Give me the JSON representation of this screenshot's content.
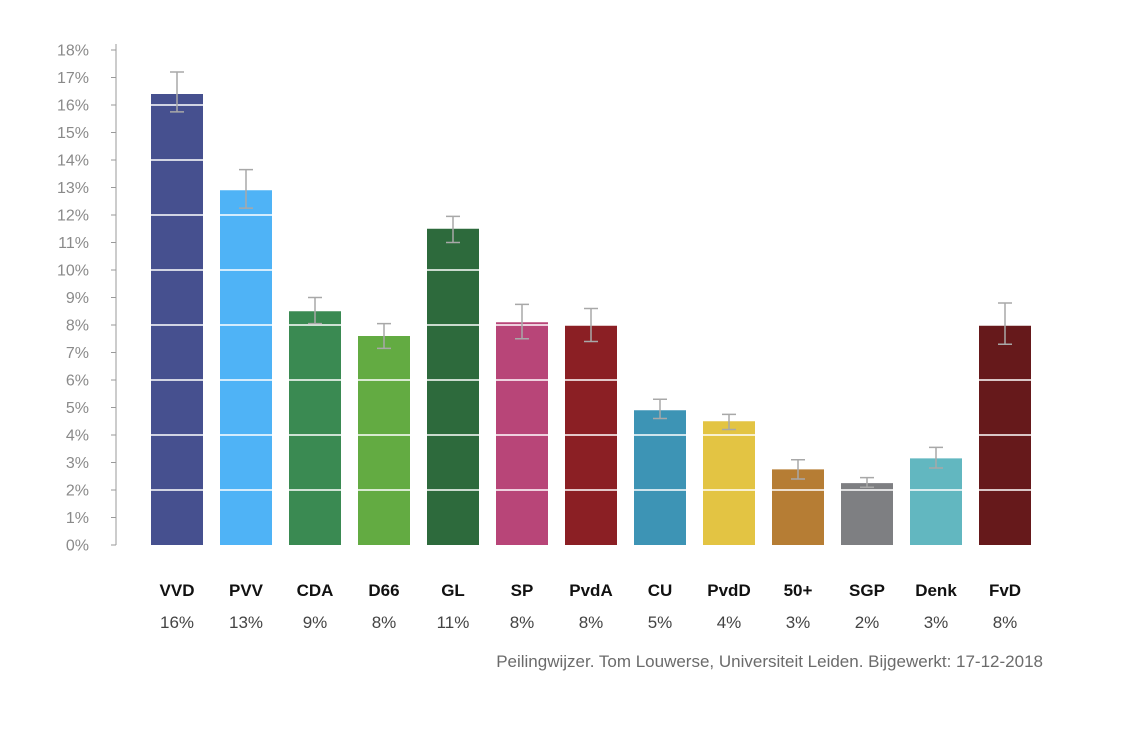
{
  "chart_data": {
    "type": "bar",
    "title": "",
    "xlabel": "",
    "ylabel": "",
    "ylim": [
      0,
      18
    ],
    "y_tick_step": 1,
    "y_tick_suffix": "%",
    "grid": "white lines inside bars every 2%",
    "categories": [
      "VVD",
      "PVV",
      "CDA",
      "D66",
      "GL",
      "SP",
      "PvdA",
      "CU",
      "PvdD",
      "50+",
      "SGP",
      "Denk",
      "FvD"
    ],
    "values": [
      16.4,
      12.9,
      8.5,
      7.6,
      11.5,
      8.1,
      8.0,
      4.9,
      4.5,
      2.75,
      2.25,
      3.15,
      8.0
    ],
    "error_low": [
      15.75,
      12.25,
      8.05,
      7.15,
      11.0,
      7.5,
      7.4,
      4.6,
      4.2,
      2.4,
      2.1,
      2.8,
      7.3
    ],
    "error_high": [
      17.2,
      13.65,
      9.0,
      8.05,
      11.95,
      8.75,
      8.6,
      5.3,
      4.75,
      3.1,
      2.45,
      3.55,
      8.8
    ],
    "value_labels": [
      "16%",
      "13%",
      "9%",
      "8%",
      "11%",
      "8%",
      "8%",
      "5%",
      "4%",
      "3%",
      "2%",
      "3%",
      "8%"
    ],
    "colors": [
      "#46508f",
      "#4fb3f6",
      "#3a8a52",
      "#63ab42",
      "#2d6a3c",
      "#b84578",
      "#8b1f24",
      "#3d94b5",
      "#e3c443",
      "#b67d34",
      "#7e7f82",
      "#62b7c0",
      "#66191b"
    ],
    "axis_color": "#9a9a9a",
    "error_bar_color": "#a8a8a8"
  },
  "source_text": "Peilingwijzer. Tom Louwerse, Universiteit Leiden. Bijgewerkt: 17-12-2018"
}
